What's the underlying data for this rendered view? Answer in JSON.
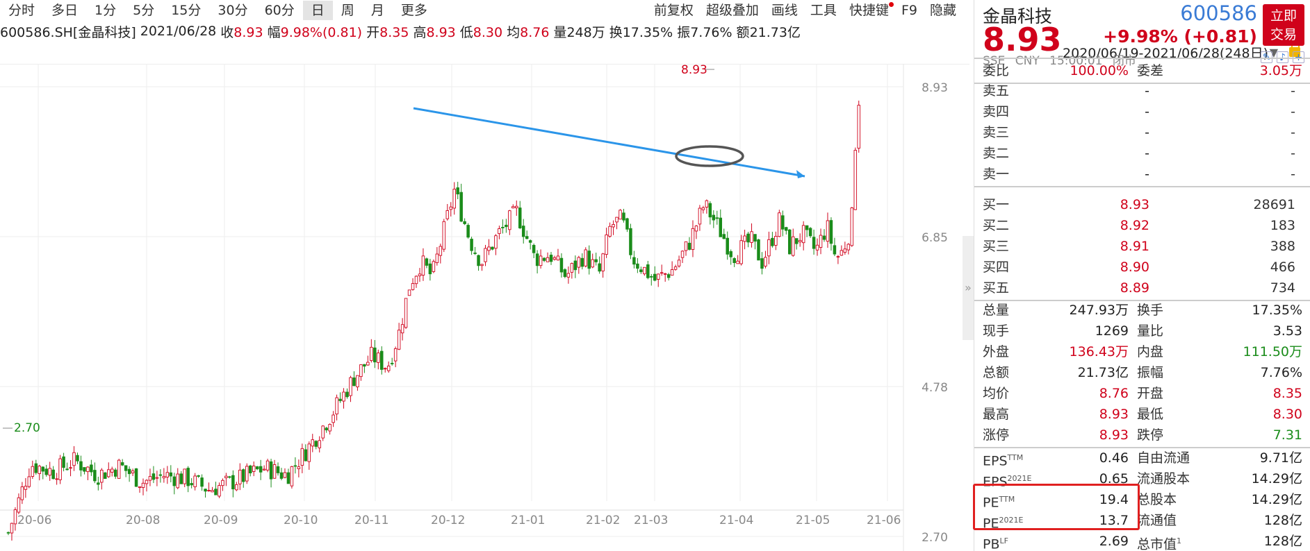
{
  "toolbar": {
    "periods": [
      "分时",
      "多日",
      "1分",
      "5分",
      "15分",
      "30分",
      "60分",
      "日",
      "周",
      "月",
      "更多"
    ],
    "active_period": "日",
    "tools": [
      "前复权",
      "超级叠加",
      "画线",
      "工具",
      "快捷键",
      "F9",
      "隐藏"
    ]
  },
  "info": {
    "symbol": "600586.SH[金晶科技]",
    "date": "2021/06/28",
    "close_label": "收",
    "close": "8.93",
    "range_label": "幅",
    "range": "9.98%(0.81)",
    "open_label": "开",
    "open": "8.35",
    "high_label": "高",
    "high": "8.93",
    "low_label": "低",
    "low": "8.30",
    "avg_label": "均",
    "avg": "8.76",
    "vol_label": "量",
    "vol": "248万",
    "turnover_label": "换",
    "turnover": "17.35%",
    "amp_label": "振",
    "amp": "7.76%",
    "amount_label": "额",
    "amount": "21.73亿",
    "period_range": "2020/06/19-2021/06/28(248日)"
  },
  "chart_data": {
    "type": "candlestick",
    "ylim": [
      2.7,
      8.93
    ],
    "y_ticks": [
      "8.93",
      "6.85",
      "4.78",
      "2.70"
    ],
    "x_ticks": [
      "20-06",
      "20-08",
      "20-09",
      "20-10",
      "20-11",
      "20-12",
      "21-01",
      "21-02",
      "21-03",
      "21-04",
      "21-05",
      "21-06"
    ],
    "max_label": "8.93",
    "min_label": "2.70",
    "days": 248,
    "trendline": {
      "from": {
        "day": 200,
        "price": 7.85
      },
      "to": {
        "day": 410,
        "price": 7.3
      },
      "color": "#2b95e9"
    },
    "waypoints": [
      [
        0,
        2.75
      ],
      [
        10,
        3.7
      ],
      [
        20,
        3.6
      ],
      [
        30,
        3.75
      ],
      [
        40,
        3.55
      ],
      [
        50,
        3.68
      ],
      [
        60,
        3.45
      ],
      [
        70,
        3.55
      ],
      [
        80,
        3.5
      ],
      [
        90,
        3.35
      ],
      [
        100,
        3.45
      ],
      [
        115,
        3.65
      ],
      [
        125,
        3.55
      ],
      [
        135,
        3.95
      ],
      [
        145,
        4.4
      ],
      [
        155,
        4.9
      ],
      [
        163,
        5.2
      ],
      [
        170,
        5.05
      ],
      [
        175,
        5.5
      ],
      [
        180,
        6.2
      ],
      [
        185,
        6.5
      ],
      [
        190,
        6.3
      ],
      [
        195,
        6.9
      ],
      [
        200,
        7.5
      ],
      [
        203,
        7.2
      ],
      [
        207,
        6.8
      ],
      [
        212,
        6.5
      ],
      [
        220,
        6.9
      ],
      [
        228,
        7.2
      ],
      [
        236,
        6.55
      ],
      [
        243,
        6.6
      ],
      [
        250,
        6.3
      ],
      [
        258,
        6.6
      ],
      [
        265,
        6.35
      ],
      [
        270,
        7.0
      ],
      [
        275,
        7.1
      ],
      [
        280,
        6.55
      ],
      [
        290,
        6.25
      ],
      [
        298,
        6.4
      ],
      [
        305,
        6.75
      ],
      [
        312,
        7.3
      ],
      [
        318,
        7.0
      ],
      [
        325,
        6.6
      ],
      [
        333,
        6.8
      ],
      [
        338,
        6.5
      ],
      [
        346,
        7.1
      ],
      [
        350,
        6.7
      ],
      [
        356,
        6.9
      ],
      [
        362,
        6.65
      ],
      [
        367,
        7.0
      ],
      [
        371,
        6.55
      ],
      [
        374,
        6.65
      ],
      [
        378,
        7.0
      ],
      [
        380,
        8.2
      ],
      [
        382,
        8.93
      ]
    ],
    "highlight_circle": {
      "day": 381,
      "price": 7.45
    }
  },
  "panel": {
    "name": "金晶科技",
    "code": "600586",
    "trade_btn": [
      "立即",
      "交易"
    ],
    "price": "8.93",
    "change": "+9.98% (+0.81)",
    "meta": [
      "SSE",
      "CNY",
      "15:00:01",
      "闭市"
    ],
    "ratio": {
      "l1": "委比",
      "v1": "100.00%",
      "l2": "委差",
      "v2": "3.05万"
    },
    "asks": [
      {
        "label": "卖五",
        "price": "-",
        "vol": "-"
      },
      {
        "label": "卖四",
        "price": "-",
        "vol": "-"
      },
      {
        "label": "卖三",
        "price": "-",
        "vol": "-"
      },
      {
        "label": "卖二",
        "price": "-",
        "vol": "-"
      },
      {
        "label": "卖一",
        "price": "-",
        "vol": "-"
      }
    ],
    "bids": [
      {
        "label": "买一",
        "price": "8.93",
        "vol": "28691"
      },
      {
        "label": "买二",
        "price": "8.92",
        "vol": "183"
      },
      {
        "label": "买三",
        "price": "8.91",
        "vol": "388"
      },
      {
        "label": "买四",
        "price": "8.90",
        "vol": "466"
      },
      {
        "label": "买五",
        "price": "8.89",
        "vol": "734"
      }
    ],
    "stats": [
      {
        "l1": "总量",
        "v1": "247.93万",
        "l2": "换手",
        "v2": "17.35%",
        "c1": "",
        "c2": ""
      },
      {
        "l1": "现手",
        "v1": "1269",
        "l2": "量比",
        "v2": "3.53",
        "c1": "",
        "c2": ""
      },
      {
        "l1": "外盘",
        "v1": "136.43万",
        "l2": "内盘",
        "v2": "111.50万",
        "c1": "red",
        "c2": "green"
      },
      {
        "l1": "总额",
        "v1": "21.73亿",
        "l2": "振幅",
        "v2": "7.76%",
        "c1": "",
        "c2": ""
      },
      {
        "l1": "均价",
        "v1": "8.76",
        "l2": "开盘",
        "v2": "8.35",
        "c1": "red",
        "c2": "red"
      },
      {
        "l1": "最高",
        "v1": "8.93",
        "l2": "最低",
        "v2": "8.30",
        "c1": "red",
        "c2": "red"
      },
      {
        "l1": "涨停",
        "v1": "8.93",
        "l2": "跌停",
        "v2": "7.31",
        "c1": "red",
        "c2": "green"
      }
    ],
    "fund": [
      {
        "l1": "EPS",
        "sup": "TTM",
        "v1": "0.46",
        "l2": "自由流通",
        "v2": "9.71亿"
      },
      {
        "l1": "EPS",
        "sup": "2021E",
        "v1": "0.65",
        "l2": "流通股本",
        "v2": "14.29亿"
      },
      {
        "l1": "PE",
        "sup": "TTM",
        "v1": "19.4",
        "l2": "总股本",
        "v2": "14.29亿"
      },
      {
        "l1": "PE",
        "sup": "2021E",
        "v1": "13.7",
        "l2": "流通值",
        "v2": "128亿"
      },
      {
        "l1": "PB",
        "sup": "LF",
        "v1": "2.69",
        "l2": "总市值",
        "sup2": "1",
        "v2": "128亿"
      }
    ]
  }
}
